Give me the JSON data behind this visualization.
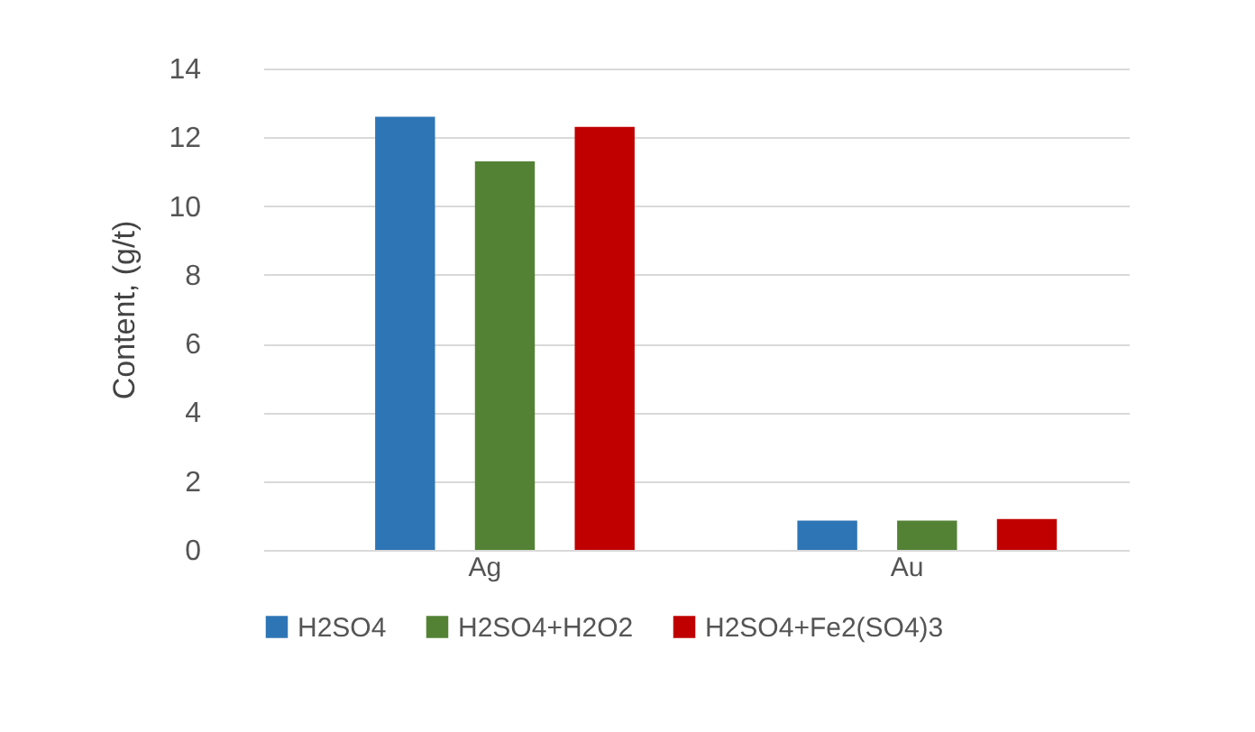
{
  "chart_data": {
    "type": "bar",
    "ylabel": "Content, (g/t)",
    "categories": [
      "Ag",
      "Au"
    ],
    "series": [
      {
        "name": "H2SO4",
        "color": "#2e75b6",
        "values": [
          12.6,
          0.85
        ]
      },
      {
        "name": "H2SO4+H2O2",
        "color": "#548235",
        "values": [
          11.3,
          0.85
        ]
      },
      {
        "name": "H2SO4+Fe2(SO4)3",
        "color": "#c00000",
        "values": [
          12.3,
          0.9
        ]
      }
    ],
    "ylim": [
      0,
      14
    ],
    "yticks": [
      0,
      2,
      4,
      6,
      8,
      10,
      12,
      14
    ],
    "grid": "y",
    "legend": "bottom"
  }
}
